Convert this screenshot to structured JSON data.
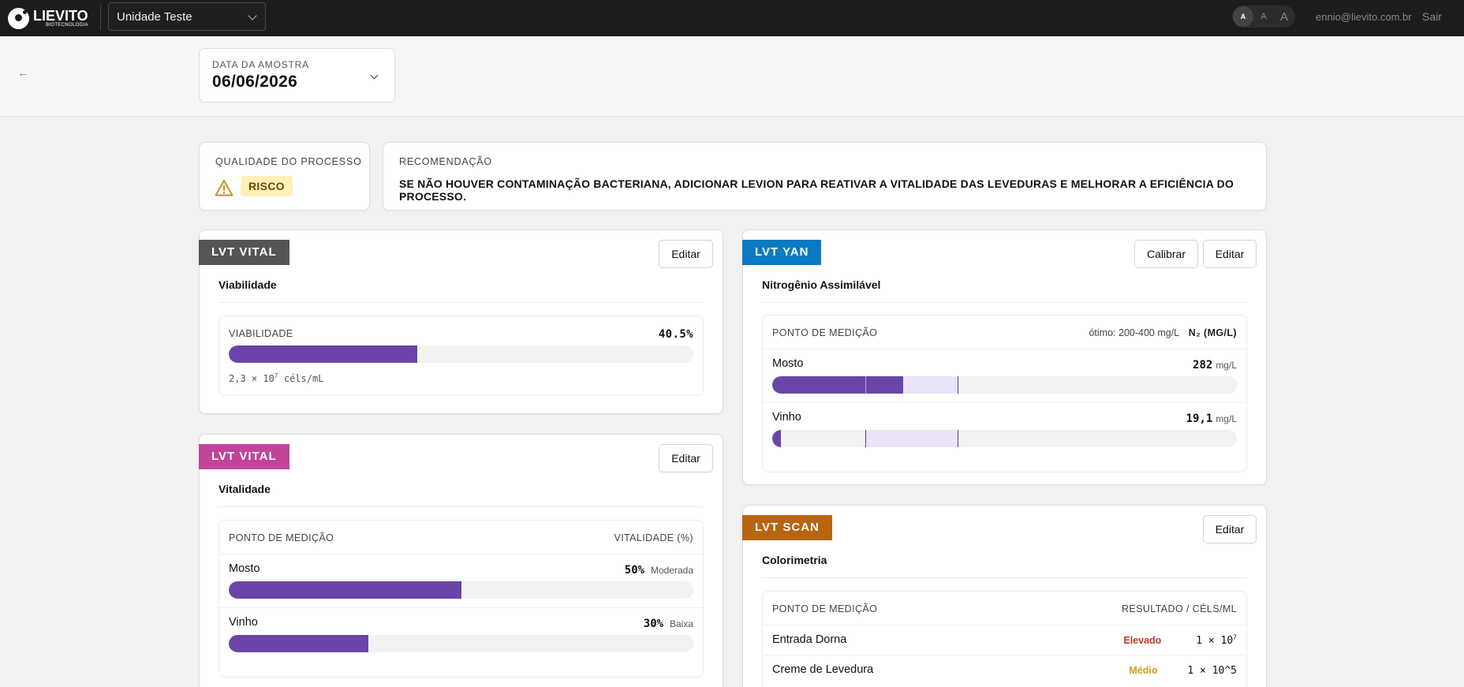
{
  "topbar": {
    "logo_name": "LIEVITO",
    "logo_sub": "BIOTECNOLOGIA",
    "unit": "Unidade Teste",
    "font_small": "A",
    "font_medium": "A",
    "font_large": "A",
    "email": "ennio@lievito.com.br",
    "logout": "Sair"
  },
  "sample": {
    "back": "←",
    "date_label": "DATA DA AMOSTRA",
    "date_value": "06/06/2026"
  },
  "quality": {
    "label": "QUALIDADE DO PROCESSO",
    "status": "RISCO"
  },
  "recommendation": {
    "label": "RECOMENDAÇÃO",
    "text": "SE NÃO HOUVER CONTAMINAÇÃO BACTERIANA, ADICIONAR LEVION PARA REATIVAR A VITALIDADE DAS LEVEDURAS E MELHORAR A EFICIÊNCIA DO PROCESSO."
  },
  "viabilidade": {
    "tag": "LVT VITAL",
    "tag_color": "#555555",
    "edit": "Editar",
    "title": "Viabilidade",
    "metric_label": "VIABILIDADE",
    "value": "40.5%",
    "fraction": 0.405,
    "cells_base": "2,3 × 10",
    "cells_exp": "7",
    "cells_unit": " céls/mL"
  },
  "vitalidade": {
    "tag": "LVT VITAL",
    "tag_color": "#c2449a",
    "edit": "Editar",
    "title": "Vitalidade",
    "col_left": "PONTO DE MEDIÇÃO",
    "col_right": "VITALIDADE (%)",
    "rows": [
      {
        "label": "Mosto",
        "value": "50%",
        "status": "Moderada",
        "fraction": 0.5
      },
      {
        "label": "Vinho",
        "value": "30%",
        "status": "Baixa",
        "fraction": 0.3
      }
    ]
  },
  "yan": {
    "tag": "LVT YAN",
    "tag_color": "#0a7ac2",
    "calibrate": "Calibrar",
    "edit": "Editar",
    "title": "Nitrogênio Assimilável",
    "col_left": "PONTO DE MEDIÇÃO",
    "optimal": "ótimo: 200-400 mg/L",
    "unit_header": "N₂ (MG/L)",
    "scale_max": 1000,
    "optimal_range": [
      200,
      400
    ],
    "rows": [
      {
        "label": "Mosto",
        "value": "282",
        "unit": "mg/L",
        "amount": 282
      },
      {
        "label": "Vinho",
        "value": "19,1",
        "unit": "mg/L",
        "amount": 19.1
      }
    ]
  },
  "scan": {
    "tag": "LVT SCAN",
    "tag_color": "#b7650f",
    "edit": "Editar",
    "title": "Colorimetria",
    "col_left": "PONTO DE MEDIÇÃO",
    "col_right": "RESULTADO / CÉLS/ML",
    "rows": [
      {
        "label": "Entrada Dorna",
        "status": "Elevado",
        "value_base": "1 × 10",
        "value_exp": "7"
      },
      {
        "label": "Creme de Levedura",
        "status": "Médio",
        "value_text": "1 × 10^5"
      }
    ]
  }
}
